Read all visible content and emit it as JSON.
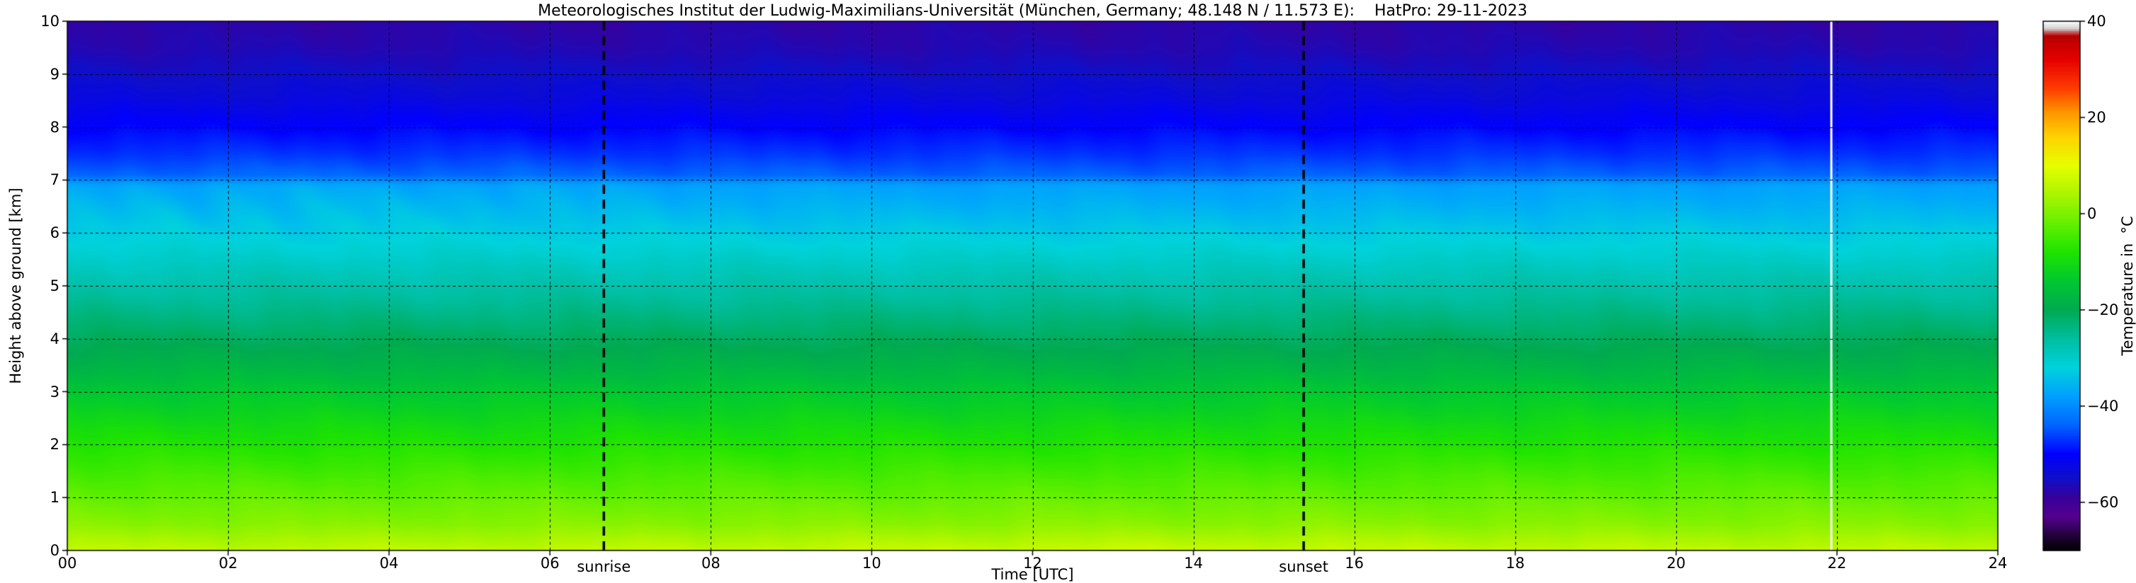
{
  "chart_data": {
    "type": "heatmap",
    "title": "Meteorologisches Institut der Ludwig-Maximilians-Universität (München, Germany; 48.148 N / 11.573 E):    HatPro: 29-11-2023",
    "xlabel": "Time [UTC]",
    "ylabel": "Height above ground [km]",
    "x_range": [
      0,
      24
    ],
    "y_range": [
      0,
      10
    ],
    "x_ticks": {
      "values": [
        0,
        2,
        4,
        6,
        8,
        10,
        12,
        14,
        16,
        18,
        20,
        22,
        24
      ],
      "labels": [
        "00",
        "02",
        "04",
        "06",
        "08",
        "10",
        "12",
        "14",
        "16",
        "18",
        "20",
        "22",
        "24"
      ]
    },
    "y_ticks": {
      "values": [
        0,
        1,
        2,
        3,
        4,
        5,
        6,
        7,
        8,
        9,
        10
      ],
      "labels": [
        "0",
        "1",
        "2",
        "3",
        "4",
        "5",
        "6",
        "7",
        "8",
        "9",
        "10"
      ]
    },
    "grid": {
      "vertical_every_h": 2,
      "horizontal_every_km": 1,
      "style": "dashed",
      "color": "#000000"
    },
    "colorbar": {
      "label": "Temperature in  °C",
      "range": [
        -70,
        40
      ],
      "tick_values": [
        40,
        20,
        0,
        -20,
        -40,
        -60
      ],
      "tick_labels": [
        "40",
        "20",
        "0",
        "−20",
        "−40",
        "−60"
      ],
      "colormap_stops": [
        {
          "value": -70,
          "color": "#000000"
        },
        {
          "value": -67,
          "color": "#200038"
        },
        {
          "value": -63,
          "color": "#55008f"
        },
        {
          "value": -59,
          "color": "#38009b"
        },
        {
          "value": -55,
          "color": "#0f0fc8"
        },
        {
          "value": -50,
          "color": "#0000ff"
        },
        {
          "value": -44,
          "color": "#0064ff"
        },
        {
          "value": -38,
          "color": "#00a0ff"
        },
        {
          "value": -32,
          "color": "#00d2dc"
        },
        {
          "value": -26,
          "color": "#00bea0"
        },
        {
          "value": -20,
          "color": "#00aa50"
        },
        {
          "value": -14,
          "color": "#00c832"
        },
        {
          "value": -8,
          "color": "#1ee400"
        },
        {
          "value": -2,
          "color": "#64f000"
        },
        {
          "value": 4,
          "color": "#aaf500"
        },
        {
          "value": 10,
          "color": "#e6ff00"
        },
        {
          "value": 16,
          "color": "#ffd200"
        },
        {
          "value": 21,
          "color": "#ff9600"
        },
        {
          "value": 26,
          "color": "#ff3c00"
        },
        {
          "value": 32,
          "color": "#e60000"
        },
        {
          "value": 37,
          "color": "#b40000"
        },
        {
          "value": 38.5,
          "color": "#d2d2d2"
        },
        {
          "value": 40,
          "color": "#ffffff"
        }
      ]
    },
    "profile": {
      "heights_km": [
        0.0,
        0.2,
        0.5,
        1.0,
        1.5,
        2.0,
        2.5,
        3.0,
        3.5,
        4.0,
        4.5,
        5.0,
        5.5,
        6.0,
        6.5,
        6.9,
        7.1,
        7.5,
        8.0,
        8.5,
        9.0,
        9.5,
        10.0
      ],
      "temperature_c": [
        6,
        4,
        1,
        -2,
        -5,
        -8,
        -11,
        -14,
        -18,
        -21,
        -24,
        -27,
        -30,
        -33,
        -36,
        -38,
        -44,
        -47,
        -50,
        -53,
        -55,
        -57,
        -58
      ]
    },
    "annotations": {
      "sunrise": {
        "label": "sunrise",
        "time_utc": 6.67
      },
      "sunset": {
        "label": "sunset",
        "time_utc": 15.37
      },
      "data_gap_time_utc": 21.93
    },
    "texture_noise_amplitude_c": 0.9,
    "features": [
      "temperature field nearly constant in time; horizontal colour bands",
      "near-surface warm layer (~+5 °C, yellow-green) below ~0.3 km",
      "sharp colour transition (abrupt temperature step ~-38 to ~-44 °C) at ~7.0 km",
      "lighter-blue warm streaks around 6.3–6.8 km mainly between 00 and 07 UTC",
      "thin white vertical data-gap line shortly before 22 UTC"
    ]
  }
}
